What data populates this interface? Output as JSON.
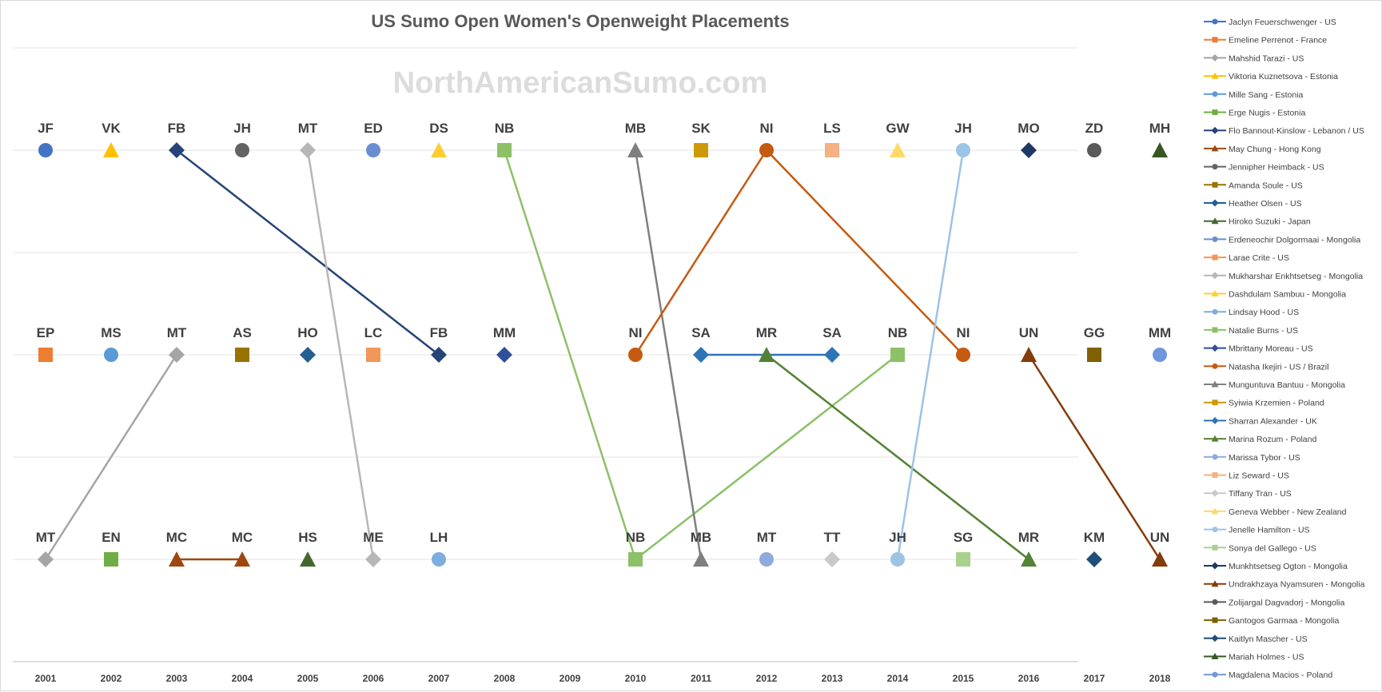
{
  "chart_data": {
    "type": "line",
    "title": "US Sumo Open Women's Openweight Placements",
    "watermark": "NorthAmericanSumo.com",
    "xlabel": "",
    "ylabel": "",
    "categories": [
      "2001",
      "2002",
      "2003",
      "2004",
      "2005",
      "2006",
      "2007",
      "2008",
      "2009",
      "2010",
      "2011",
      "2012",
      "2013",
      "2014",
      "2015",
      "2016",
      "2017",
      "2018"
    ],
    "places": [
      1,
      2,
      3
    ],
    "ylim": [
      0.5,
      3.5
    ],
    "grid": true,
    "legend_position": "right",
    "placements": [
      {
        "year": "2001",
        "place": 1,
        "initials": "JF",
        "competitor": "Jaclyn Feuerschwenger - US"
      },
      {
        "year": "2002",
        "place": 1,
        "initials": "VK",
        "competitor": "Viktoria Kuznetsova - Estonia"
      },
      {
        "year": "2003",
        "place": 1,
        "initials": "FB",
        "competitor": "Flo Bannout-Kinslow - Lebanon / US"
      },
      {
        "year": "2004",
        "place": 1,
        "initials": "JH",
        "competitor": "Jennipher Heimback - US"
      },
      {
        "year": "2005",
        "place": 1,
        "initials": "MT",
        "competitor": "Mukharshar Enkhtsetseg - Mongolia"
      },
      {
        "year": "2006",
        "place": 1,
        "initials": "ED",
        "competitor": "Erdeneochir Dolgormaai - Mongolia"
      },
      {
        "year": "2007",
        "place": 1,
        "initials": "DS",
        "competitor": "Dashdulam Sambuu - Mongolia"
      },
      {
        "year": "2008",
        "place": 1,
        "initials": "NB",
        "competitor": "Natalie Burns - US"
      },
      {
        "year": "2010",
        "place": 1,
        "initials": "MB",
        "competitor": "Munguntuva Bantuu - Mongolia"
      },
      {
        "year": "2011",
        "place": 1,
        "initials": "SK",
        "competitor": "Syiwia Krzemien - Poland"
      },
      {
        "year": "2012",
        "place": 1,
        "initials": "NI",
        "competitor": "Natasha Ikejiri - US / Brazil"
      },
      {
        "year": "2013",
        "place": 1,
        "initials": "LS",
        "competitor": "Liz Seward - US"
      },
      {
        "year": "2014",
        "place": 1,
        "initials": "GW",
        "competitor": "Geneva Webber - New Zealand"
      },
      {
        "year": "2015",
        "place": 1,
        "initials": "JH",
        "competitor": "Jenelle Hamilton - US"
      },
      {
        "year": "2016",
        "place": 1,
        "initials": "MO",
        "competitor": "Munkhtsetseg Ogton - Mongolia"
      },
      {
        "year": "2017",
        "place": 1,
        "initials": "ZD",
        "competitor": "Zolijargal Dagvadorj - Mongolia"
      },
      {
        "year": "2018",
        "place": 1,
        "initials": "MH",
        "competitor": "Mariah Holmes - US"
      },
      {
        "year": "2001",
        "place": 2,
        "initials": "EP",
        "competitor": "Emeline Perrenot - France"
      },
      {
        "year": "2002",
        "place": 2,
        "initials": "MS",
        "competitor": "Mille Sang - Estonia"
      },
      {
        "year": "2003",
        "place": 2,
        "initials": "MT",
        "competitor": "Mahshid Tarazi - US"
      },
      {
        "year": "2004",
        "place": 2,
        "initials": "AS",
        "competitor": "Amanda Soule - US"
      },
      {
        "year": "2005",
        "place": 2,
        "initials": "HO",
        "competitor": "Heather Olsen - US"
      },
      {
        "year": "2006",
        "place": 2,
        "initials": "LC",
        "competitor": "Larae Crite - US"
      },
      {
        "year": "2007",
        "place": 2,
        "initials": "FB",
        "competitor": "Flo Bannout-Kinslow - Lebanon / US"
      },
      {
        "year": "2008",
        "place": 2,
        "initials": "MM",
        "competitor": "Mbrittany Moreau - US"
      },
      {
        "year": "2010",
        "place": 2,
        "initials": "NI",
        "competitor": "Natasha Ikejiri - US / Brazil"
      },
      {
        "year": "2011",
        "place": 2,
        "initials": "SA",
        "competitor": "Sharran Alexander - UK"
      },
      {
        "year": "2012",
        "place": 2,
        "initials": "MR",
        "competitor": "Marina Rozum - Poland"
      },
      {
        "year": "2013",
        "place": 2,
        "initials": "SA",
        "competitor": "Sharran Alexander - UK"
      },
      {
        "year": "2014",
        "place": 2,
        "initials": "NB",
        "competitor": "Natalie Burns - US"
      },
      {
        "year": "2015",
        "place": 2,
        "initials": "NI",
        "competitor": "Natasha Ikejiri - US / Brazil"
      },
      {
        "year": "2016",
        "place": 2,
        "initials": "UN",
        "competitor": "Undrakhzaya Nyamsuren - Mongolia"
      },
      {
        "year": "2017",
        "place": 2,
        "initials": "GG",
        "competitor": "Gantogos Garmaa - Mongolia"
      },
      {
        "year": "2018",
        "place": 2,
        "initials": "MM",
        "competitor": "Magdalena Macios - Poland"
      },
      {
        "year": "2001",
        "place": 3,
        "initials": "MT",
        "competitor": "Mahshid Tarazi - US"
      },
      {
        "year": "2002",
        "place": 3,
        "initials": "EN",
        "competitor": "Erge Nugis - Estonia"
      },
      {
        "year": "2003",
        "place": 3,
        "initials": "MC",
        "competitor": "May Chung - Hong Kong"
      },
      {
        "year": "2004",
        "place": 3,
        "initials": "MC",
        "competitor": "May Chung - Hong Kong"
      },
      {
        "year": "2005",
        "place": 3,
        "initials": "HS",
        "competitor": "Hiroko Suzuki - Japan"
      },
      {
        "year": "2006",
        "place": 3,
        "initials": "ME",
        "competitor": "Mukharshar Enkhtsetseg - Mongolia"
      },
      {
        "year": "2007",
        "place": 3,
        "initials": "LH",
        "competitor": "Lindsay Hood - US"
      },
      {
        "year": "2010",
        "place": 3,
        "initials": "NB",
        "competitor": "Natalie Burns - US"
      },
      {
        "year": "2011",
        "place": 3,
        "initials": "MB",
        "competitor": "Munguntuva Bantuu - Mongolia"
      },
      {
        "year": "2012",
        "place": 3,
        "initials": "MT",
        "competitor": "Marissa Tybor - US"
      },
      {
        "year": "2013",
        "place": 3,
        "initials": "TT",
        "competitor": "Tiffany Tran - US"
      },
      {
        "year": "2014",
        "place": 3,
        "initials": "JH",
        "competitor": "Jenelle Hamilton - US"
      },
      {
        "year": "2015",
        "place": 3,
        "initials": "SG",
        "competitor": "Sonya del Gallego - US"
      },
      {
        "year": "2016",
        "place": 3,
        "initials": "MR",
        "competitor": "Marina Rozum - Poland"
      },
      {
        "year": "2017",
        "place": 3,
        "initials": "KM",
        "competitor": "Kaitlyn Mascher - US"
      },
      {
        "year": "2018",
        "place": 3,
        "initials": "UN",
        "competitor": "Undrakhzaya Nyamsuren - Mongolia"
      }
    ],
    "series": [
      {
        "name": "Jaclyn Feuerschwenger - US",
        "color": "#4472C4",
        "marker": "circle",
        "points": [
          {
            "year": "2001",
            "place": 1
          }
        ]
      },
      {
        "name": "Emeline Perrenot - France",
        "color": "#ED7D31",
        "marker": "square",
        "points": [
          {
            "year": "2001",
            "place": 2
          }
        ]
      },
      {
        "name": "Mahshid Tarazi - US",
        "color": "#A5A5A5",
        "marker": "diamond",
        "points": [
          {
            "year": "2001",
            "place": 3
          },
          {
            "year": "2003",
            "place": 2
          }
        ]
      },
      {
        "name": "Viktoria Kuznetsova - Estonia",
        "color": "#FFC000",
        "marker": "triangle",
        "points": [
          {
            "year": "2002",
            "place": 1
          }
        ]
      },
      {
        "name": "Mille Sang - Estonia",
        "color": "#5B9BD5",
        "marker": "circle",
        "points": [
          {
            "year": "2002",
            "place": 2
          }
        ]
      },
      {
        "name": "Erge Nugis - Estonia",
        "color": "#70AD47",
        "marker": "square",
        "points": [
          {
            "year": "2002",
            "place": 3
          }
        ]
      },
      {
        "name": "Flo Bannout-Kinslow - Lebanon / US",
        "color": "#264478",
        "marker": "diamond",
        "points": [
          {
            "year": "2003",
            "place": 1
          },
          {
            "year": "2007",
            "place": 2
          }
        ]
      },
      {
        "name": "May Chung - Hong Kong",
        "color": "#9E480E",
        "marker": "triangle",
        "points": [
          {
            "year": "2003",
            "place": 3
          },
          {
            "year": "2004",
            "place": 3
          }
        ]
      },
      {
        "name": "Jennipher Heimback - US",
        "color": "#636363",
        "marker": "circle",
        "points": [
          {
            "year": "2004",
            "place": 1
          }
        ]
      },
      {
        "name": "Amanda Soule - US",
        "color": "#997300",
        "marker": "square",
        "points": [
          {
            "year": "2004",
            "place": 2
          }
        ]
      },
      {
        "name": "Heather Olsen - US",
        "color": "#255E91",
        "marker": "diamond",
        "points": [
          {
            "year": "2005",
            "place": 2
          }
        ]
      },
      {
        "name": "Hiroko Suzuki - Japan",
        "color": "#43682B",
        "marker": "triangle",
        "points": [
          {
            "year": "2005",
            "place": 3
          }
        ]
      },
      {
        "name": "Erdeneochir Dolgormaai - Mongolia",
        "color": "#698ED0",
        "marker": "circle",
        "points": [
          {
            "year": "2006",
            "place": 1
          }
        ]
      },
      {
        "name": "Larae Crite - US",
        "color": "#F1975A",
        "marker": "square",
        "points": [
          {
            "year": "2006",
            "place": 2
          }
        ]
      },
      {
        "name": "Mukharshar Enkhtsetseg - Mongolia",
        "color": "#B7B7B7",
        "marker": "diamond",
        "points": [
          {
            "year": "2005",
            "place": 1
          },
          {
            "year": "2006",
            "place": 3
          }
        ]
      },
      {
        "name": "Dashdulam Sambuu - Mongolia",
        "color": "#FFCD33",
        "marker": "triangle",
        "points": [
          {
            "year": "2007",
            "place": 1
          }
        ]
      },
      {
        "name": "Lindsay Hood - US",
        "color": "#7CAFDD",
        "marker": "circle",
        "points": [
          {
            "year": "2007",
            "place": 3
          }
        ]
      },
      {
        "name": "Natalie Burns - US",
        "color": "#8CC168",
        "marker": "square",
        "points": [
          {
            "year": "2008",
            "place": 1
          },
          {
            "year": "2010",
            "place": 3
          },
          {
            "year": "2014",
            "place": 2
          }
        ]
      },
      {
        "name": "Mbrittany Moreau - US",
        "color": "#2F4F9C",
        "marker": "diamond",
        "points": [
          {
            "year": "2008",
            "place": 2
          }
        ]
      },
      {
        "name": "Natasha Ikejiri - US / Brazil",
        "color": "#C55A11",
        "marker": "circle",
        "points": [
          {
            "year": "2010",
            "place": 2
          },
          {
            "year": "2012",
            "place": 1
          },
          {
            "year": "2015",
            "place": 2
          }
        ]
      },
      {
        "name": "Munguntuva Bantuu - Mongolia",
        "color": "#7F7F7F",
        "marker": "triangle",
        "points": [
          {
            "year": "2010",
            "place": 1
          },
          {
            "year": "2011",
            "place": 3
          }
        ]
      },
      {
        "name": "Syiwia Krzemien - Poland",
        "color": "#CC9A06",
        "marker": "square",
        "points": [
          {
            "year": "2011",
            "place": 1
          }
        ]
      },
      {
        "name": "Sharran Alexander - UK",
        "color": "#2E75B6",
        "marker": "diamond",
        "points": [
          {
            "year": "2011",
            "place": 2
          },
          {
            "year": "2013",
            "place": 2
          }
        ]
      },
      {
        "name": "Marina Rozum - Poland",
        "color": "#548235",
        "marker": "triangle",
        "points": [
          {
            "year": "2012",
            "place": 2
          },
          {
            "year": "2016",
            "place": 3
          }
        ]
      },
      {
        "name": "Marissa Tybor - US",
        "color": "#8FAADC",
        "marker": "circle",
        "points": [
          {
            "year": "2012",
            "place": 3
          }
        ]
      },
      {
        "name": "Liz Seward - US",
        "color": "#F4B183",
        "marker": "square",
        "points": [
          {
            "year": "2013",
            "place": 1
          }
        ]
      },
      {
        "name": "Tiffany Tran - US",
        "color": "#C9C9C9",
        "marker": "diamond",
        "points": [
          {
            "year": "2013",
            "place": 3
          }
        ]
      },
      {
        "name": "Geneva Webber - New Zealand",
        "color": "#FFD966",
        "marker": "triangle",
        "points": [
          {
            "year": "2014",
            "place": 1
          }
        ]
      },
      {
        "name": "Jenelle Hamilton - US",
        "color": "#9DC3E6",
        "marker": "circle",
        "points": [
          {
            "year": "2014",
            "place": 3
          },
          {
            "year": "2015",
            "place": 1
          }
        ]
      },
      {
        "name": "Sonya del Gallego - US",
        "color": "#A9D18E",
        "marker": "square",
        "points": [
          {
            "year": "2015",
            "place": 3
          }
        ]
      },
      {
        "name": "Munkhtsetseg Ogton - Mongolia",
        "color": "#1F3864",
        "marker": "diamond",
        "points": [
          {
            "year": "2016",
            "place": 1
          }
        ]
      },
      {
        "name": "Undrakhzaya Nyamsuren - Mongolia",
        "color": "#843C0C",
        "marker": "triangle",
        "points": [
          {
            "year": "2016",
            "place": 2
          },
          {
            "year": "2018",
            "place": 3
          }
        ]
      },
      {
        "name": "Zolijargal Dagvadorj - Mongolia",
        "color": "#595959",
        "marker": "circle",
        "points": [
          {
            "year": "2017",
            "place": 1
          }
        ]
      },
      {
        "name": "Gantogos Garmaa - Mongolia",
        "color": "#806000",
        "marker": "square",
        "points": [
          {
            "year": "2017",
            "place": 2
          }
        ]
      },
      {
        "name": "Kaitlyn Mascher - US",
        "color": "#1F4E79",
        "marker": "diamond",
        "points": [
          {
            "year": "2017",
            "place": 3
          }
        ]
      },
      {
        "name": "Mariah Holmes - US",
        "color": "#375623",
        "marker": "triangle",
        "points": [
          {
            "year": "2018",
            "place": 1
          }
        ]
      },
      {
        "name": "Magdalena Macios - Poland",
        "color": "#7097DC",
        "marker": "circle",
        "points": [
          {
            "year": "2018",
            "place": 2
          }
        ]
      }
    ],
    "connections": [
      {
        "color": "#A5A5A5",
        "from": {
          "year": "2001",
          "place": 3
        },
        "to": {
          "year": "2003",
          "place": 2
        }
      },
      {
        "color": "#264478",
        "from": {
          "year": "2003",
          "place": 1
        },
        "to": {
          "year": "2007",
          "place": 2
        }
      },
      {
        "color": "#9E480E",
        "from": {
          "year": "2003",
          "place": 3
        },
        "to": {
          "year": "2004",
          "place": 3
        }
      },
      {
        "color": "#B7B7B7",
        "from": {
          "year": "2005",
          "place": 1
        },
        "to": {
          "year": "2006",
          "place": 3
        }
      },
      {
        "color": "#8CC168",
        "from": {
          "year": "2008",
          "place": 1
        },
        "to": {
          "year": "2010",
          "place": 3
        }
      },
      {
        "color": "#8CC168",
        "from": {
          "year": "2010",
          "place": 3
        },
        "to": {
          "year": "2014",
          "place": 2
        }
      },
      {
        "color": "#7F7F7F",
        "from": {
          "year": "2010",
          "place": 1
        },
        "to": {
          "year": "2011",
          "place": 3
        }
      },
      {
        "color": "#C55A11",
        "from": {
          "year": "2010",
          "place": 2
        },
        "to": {
          "year": "2012",
          "place": 1
        }
      },
      {
        "color": "#C55A11",
        "from": {
          "year": "2012",
          "place": 1
        },
        "to": {
          "year": "2015",
          "place": 2
        }
      },
      {
        "color": "#2E75B6",
        "from": {
          "year": "2011",
          "place": 2
        },
        "to": {
          "year": "2013",
          "place": 2
        }
      },
      {
        "color": "#548235",
        "from": {
          "year": "2012",
          "place": 2
        },
        "to": {
          "year": "2016",
          "place": 3
        }
      },
      {
        "color": "#9DC3E6",
        "from": {
          "year": "2014",
          "place": 3
        },
        "to": {
          "year": "2015",
          "place": 1
        }
      },
      {
        "color": "#843C0C",
        "from": {
          "year": "2016",
          "place": 2
        },
        "to": {
          "year": "2018",
          "place": 3
        }
      }
    ]
  }
}
